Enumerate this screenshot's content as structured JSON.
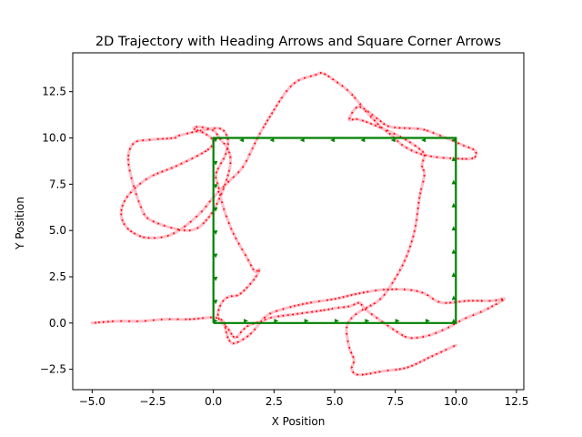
{
  "chart_data": {
    "type": "line",
    "title": "2D Trajectory with Heading Arrows and Square Corner Arrows",
    "xlabel": "X Position",
    "ylabel": "Y Position",
    "xlim": [
      -5.8,
      12.8
    ],
    "ylim": [
      -3.6,
      14.6
    ],
    "xticks": [
      -5.0,
      -2.5,
      0.0,
      2.5,
      5.0,
      7.5,
      10.0,
      12.5
    ],
    "xtick_labels": [
      "−5.0",
      "−2.5",
      "0.0",
      "2.5",
      "5.0",
      "7.5",
      "10.0",
      "12.5"
    ],
    "yticks": [
      -2.5,
      0.0,
      2.5,
      5.0,
      7.5,
      10.0,
      12.5
    ],
    "ytick_labels": [
      "−2.5",
      "0.0",
      "2.5",
      "5.0",
      "7.5",
      "10.0",
      "12.5"
    ],
    "grid": false,
    "colors": {
      "trajectory_line": "#ffc0cb",
      "heading_arrows": "#ff0000",
      "square": "#008000",
      "square_arrows": "#008000"
    },
    "series": [
      {
        "role": "trajectory",
        "x": [
          -5.0,
          -4.0,
          -3.0,
          -2.0,
          -1.0,
          0.0,
          0.4,
          0.5,
          0.6,
          0.8,
          1.2,
          1.6,
          2.2,
          3.0,
          4.0,
          5.0,
          6.0,
          7.0,
          8.0,
          8.7,
          9.4,
          10.5,
          11.5,
          12.0,
          11.2,
          10.3,
          9.6,
          8.8,
          8.1,
          7.6,
          6.4,
          6.1,
          6.0,
          5.6,
          5.0,
          4.6,
          3.5,
          2.4,
          2.0,
          1.5,
          1.2,
          0.9,
          0.6,
          0.2,
          0.3,
          0.6,
          1.0,
          1.3,
          1.7,
          1.9,
          1.7,
          1.4,
          1.0,
          0.7,
          0.4,
          0.2,
          0.1,
          0.3,
          0.5,
          0.6,
          0.3,
          -0.5,
          -1.5,
          -1.6,
          -2.6,
          -3.3,
          -3.5,
          -3.0,
          -2.5,
          -1.0,
          -0.2,
          0.4,
          0.7,
          0.6,
          0.3,
          0.0,
          -0.6,
          -0.8,
          -0.3,
          0.0,
          -0.3,
          -1.5,
          -2.6,
          -3.3,
          -3.7,
          -3.8,
          -3.6,
          -3.2,
          -2.7,
          -1.9,
          -1.2,
          -0.5,
          0.0,
          0.6,
          1.2,
          1.6,
          1.9,
          2.4,
          3.0,
          3.5,
          4.2,
          4.5,
          5.0,
          5.6,
          6.2,
          6.3,
          6.8,
          7.3,
          8.4,
          8.8,
          9.6,
          10.3,
          10.8,
          10.7,
          9.8,
          9.0,
          8.4,
          7.8,
          7.3,
          6.9,
          6.6,
          6.0,
          5.6,
          6.0,
          7.0,
          7.8,
          8.3,
          8.5,
          8.7,
          8.6,
          8.7,
          8.5,
          8.3,
          7.9,
          7.3,
          6.8,
          5.9,
          5.5,
          5.6,
          5.8,
          5.7,
          6.0,
          7.0,
          8.0,
          9.0,
          10.0
        ],
        "y": [
          0.0,
          0.1,
          0.1,
          0.2,
          0.2,
          0.3,
          0.1,
          -0.3,
          -0.8,
          -1.1,
          -0.9,
          -0.5,
          0.4,
          0.8,
          1.1,
          1.3,
          1.6,
          1.8,
          1.8,
          1.6,
          1.1,
          1.2,
          1.2,
          1.3,
          0.7,
          0.2,
          -0.3,
          -0.7,
          -0.8,
          -0.5,
          0.6,
          1.0,
          1.1,
          0.9,
          0.8,
          0.7,
          0.5,
          0.3,
          0.1,
          -0.1,
          -0.4,
          -0.8,
          -0.3,
          0.3,
          1.0,
          1.4,
          1.5,
          1.8,
          2.4,
          2.9,
          2.8,
          3.5,
          4.4,
          5.2,
          6.3,
          7.4,
          8.0,
          8.6,
          9.1,
          9.9,
          10.5,
          10.4,
          10.1,
          10.0,
          9.9,
          9.7,
          8.6,
          6.3,
          5.5,
          5.0,
          5.7,
          7.2,
          8.6,
          9.4,
          9.9,
          10.4,
          10.6,
          10.5,
          10.2,
          9.8,
          9.3,
          8.5,
          7.9,
          7.2,
          6.5,
          5.8,
          5.2,
          4.8,
          4.6,
          4.7,
          5.2,
          6.0,
          6.8,
          7.6,
          8.4,
          9.4,
          10.2,
          11.3,
          12.5,
          13.1,
          13.4,
          13.5,
          13.1,
          12.5,
          11.6,
          11.5,
          11.0,
          10.6,
          10.5,
          10.4,
          10.0,
          9.6,
          9.3,
          8.9,
          8.9,
          9.0,
          9.2,
          9.6,
          10.2,
          10.6,
          11.0,
          11.7,
          11.0,
          11.0,
          10.5,
          10.0,
          9.6,
          9.4,
          9.1,
          8.5,
          8.0,
          6.8,
          5.0,
          3.4,
          2.0,
          1.2,
          0.5,
          -0.2,
          -1.3,
          -2.0,
          -2.5,
          -2.8,
          -2.6,
          -2.4,
          -1.8,
          -1.2
        ]
      },
      {
        "role": "square",
        "x": [
          0.0,
          10.0,
          10.0,
          0.0,
          0.0
        ],
        "y": [
          0.0,
          0.0,
          10.0,
          10.0,
          0.0
        ]
      }
    ]
  }
}
